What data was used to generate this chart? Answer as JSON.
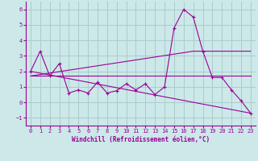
{
  "xlabel": "Windchill (Refroidissement éolien,°C)",
  "bg_color": "#cce8e8",
  "grid_color": "#aacccc",
  "line_color": "#990099",
  "spine_color": "#990099",
  "xlim": [
    -0.5,
    23.5
  ],
  "ylim": [
    -1.5,
    6.5
  ],
  "yticks": [
    -1,
    0,
    1,
    2,
    3,
    4,
    5,
    6
  ],
  "xticks": [
    0,
    1,
    2,
    3,
    4,
    5,
    6,
    7,
    8,
    9,
    10,
    11,
    12,
    13,
    14,
    15,
    16,
    17,
    18,
    19,
    20,
    21,
    22,
    23
  ],
  "series1_x": [
    0,
    1,
    2,
    3,
    4,
    5,
    6,
    7,
    8,
    9,
    10,
    11,
    12,
    13,
    14,
    15,
    16,
    17,
    18,
    19,
    20,
    21,
    22,
    23
  ],
  "series1_y": [
    2.0,
    3.3,
    1.7,
    2.5,
    0.6,
    0.8,
    0.6,
    1.3,
    0.6,
    0.75,
    1.2,
    0.8,
    1.2,
    0.5,
    1.0,
    4.8,
    6.0,
    5.5,
    3.3,
    1.6,
    1.6,
    0.8,
    0.1,
    -0.7
  ],
  "series2_x": [
    0,
    23
  ],
  "series2_y": [
    2.0,
    -0.7
  ],
  "series3_x": [
    0,
    23
  ],
  "series3_y": [
    1.7,
    1.7
  ],
  "series4_x": [
    0,
    17,
    23
  ],
  "series4_y": [
    1.7,
    3.3,
    3.3
  ],
  "tick_labelsize": 5,
  "xlabel_fontsize": 5.5
}
